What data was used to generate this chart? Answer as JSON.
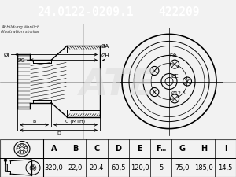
{
  "part_number": "24.0122-0209.1",
  "ref_number": "422209",
  "header_bg": "#1a5276",
  "header_text_color": "#ffffff",
  "bg_color": "#f2f2f2",
  "diagram_bg": "#ffffff",
  "table_headers": [
    "A",
    "B",
    "C",
    "D",
    "E",
    "Fₘ",
    "G",
    "H",
    "I"
  ],
  "table_values": [
    "320,0",
    "22,0",
    "20,4",
    "60,5",
    "120,0",
    "5",
    "75,0",
    "185,0",
    "14,5"
  ],
  "note_line1": "Abbildung ähnlich",
  "note_line2": "illustration similar",
  "dim_label_I": "ØI",
  "dim_label_G": "ØG",
  "dim_label_H": "ØH",
  "dim_label_A": "ØA",
  "front_label_F": "F⊕",
  "front_label_E": "ØE",
  "front_label_r": "Ø12,5"
}
